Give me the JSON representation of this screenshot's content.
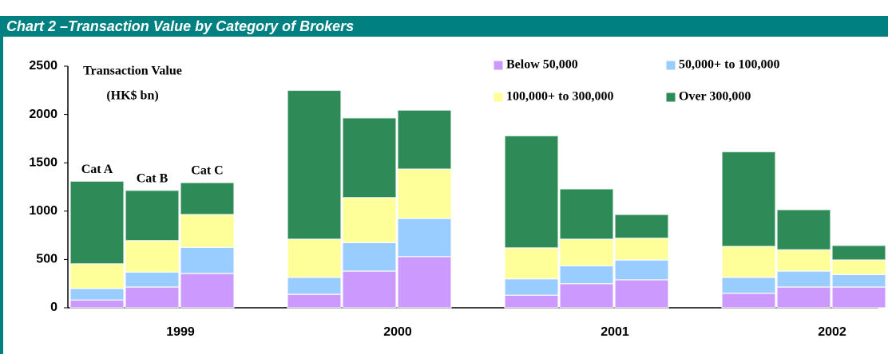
{
  "chart_data": {
    "type": "grouped-stacked-bar",
    "title": "Chart 2 –Transaction Value by Category of Brokers",
    "ylabel": [
      "Transaction Value",
      "(HK$ bn)"
    ],
    "categories": [
      "1999",
      "2000",
      "2001",
      "2002"
    ],
    "bar_labels": [
      "Cat A",
      "Cat B",
      "Cat C"
    ],
    "ylim": [
      0,
      2500
    ],
    "yticks": [
      0,
      500,
      1000,
      1500,
      2000,
      2500
    ],
    "series": [
      {
        "name": "Below 50,000",
        "color": "#cc99ff",
        "values": [
          [
            80,
            215,
            355
          ],
          [
            140,
            380,
            530
          ],
          [
            130,
            250,
            290
          ],
          [
            150,
            215,
            215
          ]
        ]
      },
      {
        "name": "50,000+ to 100,000",
        "color": "#99ccff",
        "values": [
          [
            120,
            155,
            270
          ],
          [
            175,
            295,
            395
          ],
          [
            170,
            185,
            205
          ],
          [
            165,
            165,
            130
          ]
        ]
      },
      {
        "name": "100,000+ to 300,000",
        "color": "#ffff99",
        "values": [
          [
            255,
            325,
            340
          ],
          [
            395,
            465,
            510
          ],
          [
            320,
            275,
            225
          ],
          [
            320,
            220,
            150
          ]
        ]
      },
      {
        "name": "Over 300,000",
        "color": "#2e8b57",
        "values": [
          [
            855,
            520,
            330
          ],
          [
            1540,
            825,
            610
          ],
          [
            1160,
            520,
            245
          ],
          [
            980,
            415,
            150
          ]
        ]
      }
    ]
  }
}
